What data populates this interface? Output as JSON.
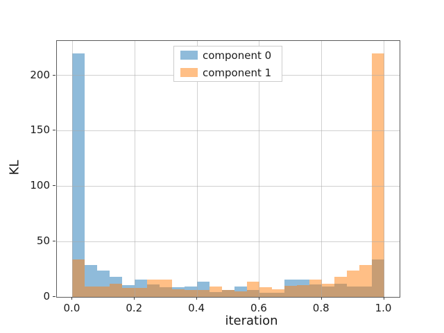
{
  "figure": {
    "xlabel": "iteration",
    "ylabel": "KL"
  },
  "legend": {
    "items": [
      {
        "label": "component 0",
        "color": "#8fbbda"
      },
      {
        "label": "component 1",
        "color": "#ffbf86"
      }
    ]
  },
  "chart_data": {
    "type": "bar",
    "subtype": "overlapping-histogram",
    "title": "",
    "xlabel": "iteration",
    "ylabel": "KL",
    "grid": true,
    "legend_position": "upper center",
    "xlim": [
      -0.05,
      1.05
    ],
    "ylim": [
      0,
      231
    ],
    "x_tick_values": [
      0.0,
      0.2,
      0.4,
      0.6,
      0.8,
      1.0
    ],
    "x_tick_labels": [
      "0.0",
      "0.2",
      "0.4",
      "0.6",
      "0.8",
      "1.0"
    ],
    "y_tick_values": [
      0,
      50,
      100,
      150,
      200
    ],
    "y_tick_labels": [
      "0",
      "50",
      "100",
      "150",
      "200"
    ],
    "bin_start": 0.0,
    "bin_width": 0.04,
    "bin_count": 25,
    "overlap_color": "#c79d74",
    "series": [
      {
        "name": "component 0",
        "color": "#8fbbda",
        "values": [
          220,
          29,
          24,
          18,
          10.5,
          15.5,
          11,
          8.5,
          8.5,
          9.5,
          14,
          4.5,
          6,
          9.5,
          6,
          4,
          4,
          15.5,
          15.5,
          11,
          9.5,
          12,
          9.5,
          9.5,
          33.5
        ]
      },
      {
        "name": "component 1",
        "color": "#ffbf86",
        "values": [
          33.5,
          9.5,
          9.5,
          12,
          8,
          8,
          15.5,
          15.5,
          7,
          6,
          6,
          9.5,
          6,
          5,
          14,
          8.5,
          7,
          10,
          10.5,
          15.5,
          12,
          18,
          23.5,
          29,
          220
        ]
      }
    ]
  }
}
